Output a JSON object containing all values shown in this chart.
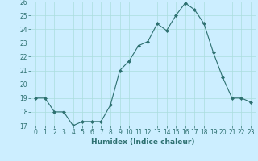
{
  "x": [
    0,
    1,
    2,
    3,
    4,
    5,
    6,
    7,
    8,
    9,
    10,
    11,
    12,
    13,
    14,
    15,
    16,
    17,
    18,
    19,
    20,
    21,
    22,
    23
  ],
  "y": [
    19,
    19,
    18,
    18,
    17,
    17.3,
    17.3,
    17.3,
    18.5,
    21,
    21.7,
    22.8,
    23.1,
    24.4,
    23.9,
    25,
    25.9,
    25.4,
    24.4,
    22.3,
    20.5,
    19,
    19,
    18.7
  ],
  "xlabel": "Humidex (Indice chaleur)",
  "ylim": [
    17,
    26
  ],
  "xlim": [
    -0.5,
    23.5
  ],
  "yticks": [
    17,
    18,
    19,
    20,
    21,
    22,
    23,
    24,
    25,
    26
  ],
  "xticks": [
    0,
    1,
    2,
    3,
    4,
    5,
    6,
    7,
    8,
    9,
    10,
    11,
    12,
    13,
    14,
    15,
    16,
    17,
    18,
    19,
    20,
    21,
    22,
    23
  ],
  "line_color": "#2d7070",
  "marker": "D",
  "marker_size": 2.0,
  "bg_color": "#cceeff",
  "grid_color": "#aadddd",
  "tick_label_fontsize": 5.5,
  "xlabel_fontsize": 6.5
}
